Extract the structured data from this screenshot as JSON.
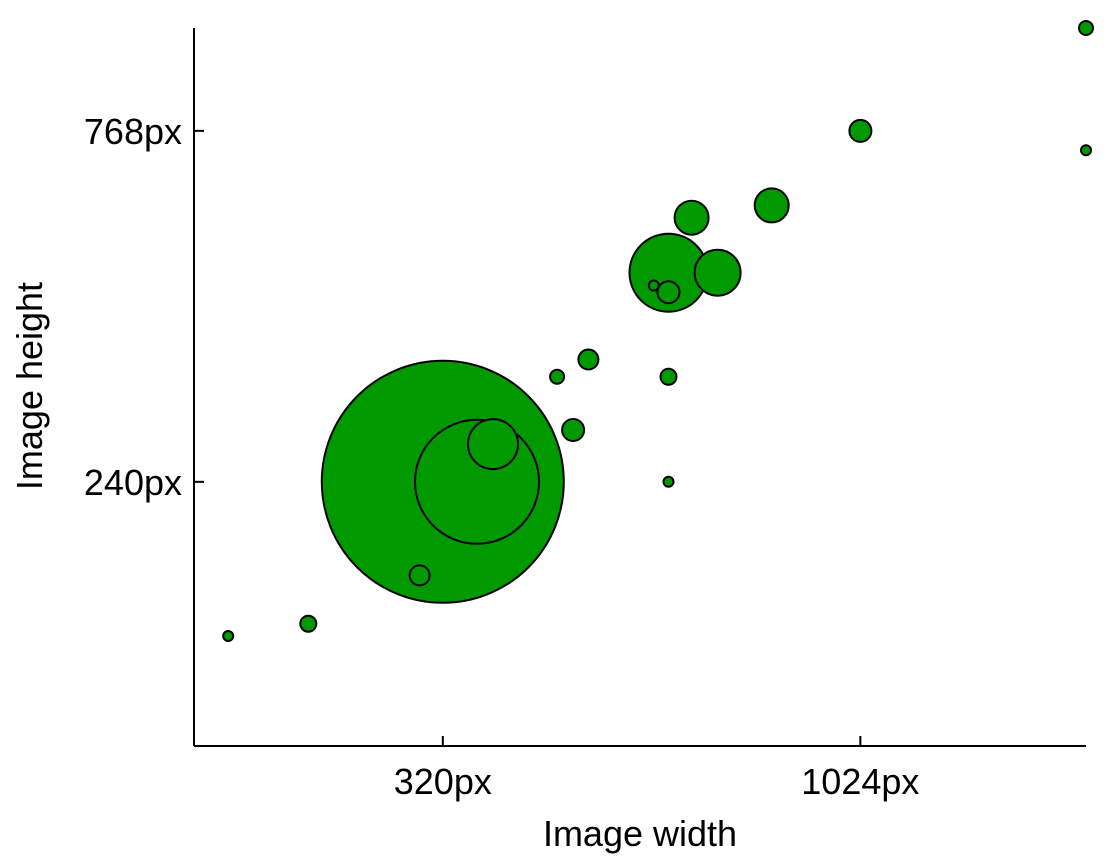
{
  "chart_data": {
    "type": "scatter",
    "xlabel": "Image width",
    "ylabel": "Image height",
    "x_scale": "log",
    "y_scale": "log",
    "xlim": [
      160,
      1920
    ],
    "ylim": [
      100,
      1080
    ],
    "x_ticks": [
      {
        "value": 320,
        "label": "320px"
      },
      {
        "value": 1024,
        "label": "1024px"
      }
    ],
    "y_ticks": [
      {
        "value": 240,
        "label": "240px"
      },
      {
        "value": 768,
        "label": "768px"
      }
    ],
    "grid": false,
    "legend": "none",
    "color": "#009900",
    "points": [
      {
        "x": 320,
        "y": 240,
        "size": 121
      },
      {
        "x": 352,
        "y": 240,
        "size": 62
      },
      {
        "x": 368,
        "y": 272,
        "size": 25
      },
      {
        "x": 600,
        "y": 480,
        "size": 39
      },
      {
        "x": 688,
        "y": 480,
        "size": 23
      },
      {
        "x": 640,
        "y": 576,
        "size": 17
      },
      {
        "x": 800,
        "y": 600,
        "size": 17
      },
      {
        "x": 1024,
        "y": 768,
        "size": 11
      },
      {
        "x": 1920,
        "y": 1080,
        "size": 7
      },
      {
        "x": 1920,
        "y": 720,
        "size": 5
      },
      {
        "x": 480,
        "y": 360,
        "size": 10
      },
      {
        "x": 440,
        "y": 340,
        "size": 7
      },
      {
        "x": 460,
        "y": 285,
        "size": 11
      },
      {
        "x": 600,
        "y": 340,
        "size": 8
      },
      {
        "x": 600,
        "y": 450,
        "size": 11
      },
      {
        "x": 576,
        "y": 460,
        "size": 5
      },
      {
        "x": 600,
        "y": 240,
        "size": 5
      },
      {
        "x": 176,
        "y": 144,
        "size": 5
      },
      {
        "x": 220,
        "y": 150,
        "size": 8
      },
      {
        "x": 300,
        "y": 176,
        "size": 10
      }
    ]
  }
}
